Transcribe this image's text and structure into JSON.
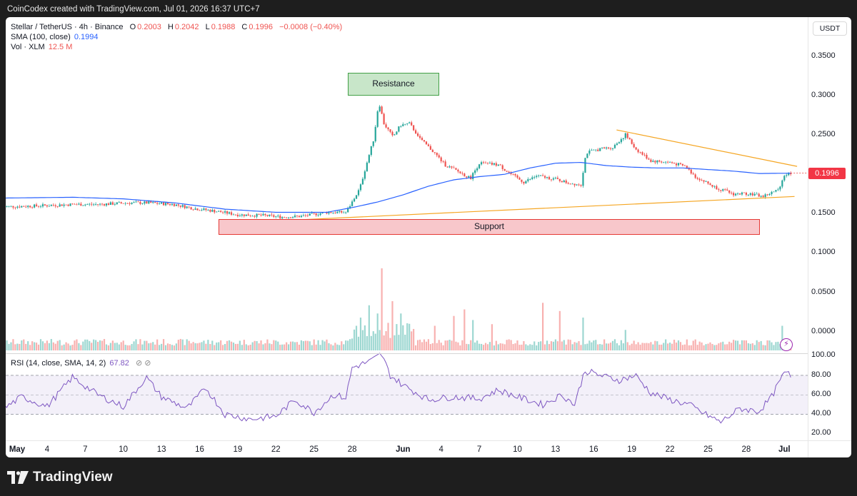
{
  "header": {
    "credit": "CoinCodex created with TradingView.com, Jul 01, 2026 16:37 UTC+7"
  },
  "legend": {
    "symbol": "Stellar / TetherUS · 4h · Binance",
    "o_label": "O",
    "o_val": "0.2003",
    "h_label": "H",
    "h_val": "0.2042",
    "l_label": "L",
    "l_val": "0.1988",
    "c_label": "C",
    "c_val": "0.1996",
    "change": "−0.0008 (−0.40%)",
    "sma_label": "SMA (100, close)",
    "sma_val": "0.1994",
    "vol_label": "Vol · XLM",
    "vol_val": "12.5 M",
    "rsi_label": "RSI (14, close, SMA, 14, 2)",
    "rsi_val": "67.82",
    "rsi_icons": "⊘ ⊘"
  },
  "currency": "USDT",
  "last_price": "0.1996",
  "annotations": {
    "resistance": "Resistance",
    "support": "Support"
  },
  "footer": {
    "brand": "TradingView"
  },
  "colors": {
    "up": "#26a69a",
    "down": "#ef5350",
    "sma": "#2962ff",
    "trend": "#f5a623",
    "rsi": "#7e57c2"
  },
  "chart_data": {
    "type": "candlestick",
    "interval": "4h",
    "symbol": "XLMUSDT",
    "price_axis": {
      "ticks": [
        "0.3500",
        "0.3000",
        "0.2500",
        "0.1500",
        "0.1000",
        "0.0500",
        "0.0000"
      ],
      "ylim": [
        -0.01,
        0.37
      ]
    },
    "rsi_axis": {
      "ticks": [
        "100.00",
        "80.00",
        "60.00",
        "40.00",
        "20.00"
      ],
      "bands": [
        30,
        70
      ]
    },
    "x_ticks": [
      {
        "label": "May",
        "day": 1,
        "bold": true
      },
      {
        "label": "4",
        "day": 4
      },
      {
        "label": "7",
        "day": 7
      },
      {
        "label": "10",
        "day": 10
      },
      {
        "label": "13",
        "day": 13
      },
      {
        "label": "16",
        "day": 16
      },
      {
        "label": "19",
        "day": 19
      },
      {
        "label": "22",
        "day": 22
      },
      {
        "label": "25",
        "day": 25
      },
      {
        "label": "28",
        "day": 28
      },
      {
        "label": "Jun",
        "day": 32,
        "bold": true
      },
      {
        "label": "4",
        "day": 35
      },
      {
        "label": "7",
        "day": 38
      },
      {
        "label": "10",
        "day": 41
      },
      {
        "label": "13",
        "day": 44
      },
      {
        "label": "16",
        "day": 47
      },
      {
        "label": "19",
        "day": 50
      },
      {
        "label": "22",
        "day": 53
      },
      {
        "label": "25",
        "day": 56
      },
      {
        "label": "28",
        "day": 59
      },
      {
        "label": "Jul",
        "day": 62,
        "bold": true
      }
    ],
    "close_path": [
      [
        0.5,
        0.157
      ],
      [
        3,
        0.158
      ],
      [
        6,
        0.16
      ],
      [
        8,
        0.16
      ],
      [
        10.5,
        0.162
      ],
      [
        12,
        0.162
      ],
      [
        14,
        0.16
      ],
      [
        15.5,
        0.155
      ],
      [
        17,
        0.152
      ],
      [
        19,
        0.147
      ],
      [
        21,
        0.146
      ],
      [
        22.5,
        0.144
      ],
      [
        24,
        0.145
      ],
      [
        26,
        0.15
      ],
      [
        27.5,
        0.15
      ],
      [
        28,
        0.163
      ],
      [
        28.6,
        0.18
      ],
      [
        29.2,
        0.215
      ],
      [
        29.7,
        0.243
      ],
      [
        30.1,
        0.29
      ],
      [
        30.5,
        0.262
      ],
      [
        31.2,
        0.245
      ],
      [
        31.8,
        0.26
      ],
      [
        32.5,
        0.262
      ],
      [
        33.5,
        0.24
      ],
      [
        34.3,
        0.228
      ],
      [
        35.3,
        0.21
      ],
      [
        36.5,
        0.2
      ],
      [
        37.3,
        0.193
      ],
      [
        38,
        0.212
      ],
      [
        39.5,
        0.21
      ],
      [
        40.5,
        0.198
      ],
      [
        41.5,
        0.188
      ],
      [
        42.5,
        0.196
      ],
      [
        44,
        0.192
      ],
      [
        45,
        0.187
      ],
      [
        46,
        0.185
      ],
      [
        46.4,
        0.225
      ],
      [
        47.5,
        0.23
      ],
      [
        48.5,
        0.232
      ],
      [
        49.5,
        0.248
      ],
      [
        50.3,
        0.23
      ],
      [
        51.5,
        0.215
      ],
      [
        53,
        0.213
      ],
      [
        54.2,
        0.208
      ],
      [
        55,
        0.195
      ],
      [
        56.5,
        0.182
      ],
      [
        58,
        0.173
      ],
      [
        59.2,
        0.174
      ],
      [
        60.3,
        0.17
      ],
      [
        61.5,
        0.178
      ],
      [
        62,
        0.197
      ],
      [
        62.5,
        0.1996
      ]
    ],
    "sma_100": [
      [
        0.5,
        0.168
      ],
      [
        6,
        0.169
      ],
      [
        10,
        0.167
      ],
      [
        14,
        0.162
      ],
      [
        18,
        0.154
      ],
      [
        22,
        0.15
      ],
      [
        26,
        0.15
      ],
      [
        28,
        0.156
      ],
      [
        30,
        0.163
      ],
      [
        32,
        0.172
      ],
      [
        34,
        0.183
      ],
      [
        36,
        0.191
      ],
      [
        38,
        0.195
      ],
      [
        40,
        0.198
      ],
      [
        42,
        0.206
      ],
      [
        44,
        0.212
      ],
      [
        46,
        0.213
      ],
      [
        47,
        0.211
      ],
      [
        48,
        0.209
      ],
      [
        50,
        0.207
      ],
      [
        52,
        0.206
      ],
      [
        54,
        0.206
      ],
      [
        56,
        0.204
      ],
      [
        58,
        0.202
      ],
      [
        60,
        0.199
      ],
      [
        62.5,
        0.1994
      ]
    ],
    "trendlines": [
      {
        "name": "upper",
        "from": [
          48.8,
          0.254
        ],
        "to": [
          63,
          0.208
        ]
      },
      {
        "name": "lower",
        "from": [
          21.8,
          0.139
        ],
        "to": [
          62.8,
          0.17
        ]
      }
    ],
    "zones": [
      {
        "label": "Resistance",
        "from_day": 28.2,
        "to_day": 33.1,
        "low": 0.285,
        "high": 0.31
      },
      {
        "label": "Support",
        "from_day": 18.3,
        "to_day": 61.3,
        "low": 0.127,
        "high": 0.145
      }
    ],
    "volume_spikes_xlm": [
      [
        28.3,
        30
      ],
      [
        28.7,
        40
      ],
      [
        29.3,
        55
      ],
      [
        30,
        45
      ],
      [
        30.4,
        100
      ],
      [
        31.1,
        60
      ],
      [
        31.8,
        45
      ],
      [
        34.5,
        30
      ],
      [
        36,
        42
      ],
      [
        36.8,
        50
      ],
      [
        37.5,
        37
      ],
      [
        39,
        32
      ],
      [
        43,
        58
      ],
      [
        44.3,
        48
      ],
      [
        46.1,
        40
      ],
      [
        49.5,
        25
      ],
      [
        61.9,
        30
      ]
    ],
    "rsi_path": [
      [
        0.5,
        35
      ],
      [
        2,
        48
      ],
      [
        4,
        38
      ],
      [
        6,
        68
      ],
      [
        8,
        50
      ],
      [
        10,
        38
      ],
      [
        11.8,
        68
      ],
      [
        13,
        48
      ],
      [
        15,
        36
      ],
      [
        16.5,
        57
      ],
      [
        18,
        30
      ],
      [
        20,
        25
      ],
      [
        22,
        28
      ],
      [
        23.5,
        45
      ],
      [
        25,
        32
      ],
      [
        26.5,
        50
      ],
      [
        27.5,
        47
      ],
      [
        28,
        78
      ],
      [
        29.5,
        85
      ],
      [
        30.3,
        92
      ],
      [
        31,
        70
      ],
      [
        32,
        60
      ],
      [
        34,
        45
      ],
      [
        36,
        48
      ],
      [
        38,
        46
      ],
      [
        39.5,
        55
      ],
      [
        41,
        48
      ],
      [
        43,
        40
      ],
      [
        44.5,
        50
      ],
      [
        45.5,
        40
      ],
      [
        46.3,
        75
      ],
      [
        47.5,
        70
      ],
      [
        49,
        65
      ],
      [
        50.3,
        70
      ],
      [
        51.5,
        52
      ],
      [
        53,
        45
      ],
      [
        54.5,
        40
      ],
      [
        55.5,
        32
      ],
      [
        57,
        22
      ],
      [
        58.5,
        36
      ],
      [
        60,
        33
      ],
      [
        61,
        48
      ],
      [
        61.8,
        68
      ],
      [
        62.2,
        74
      ],
      [
        62.5,
        67.82
      ]
    ]
  }
}
